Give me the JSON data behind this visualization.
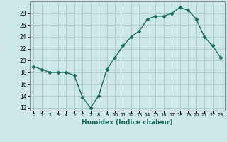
{
  "x": [
    0,
    1,
    2,
    3,
    4,
    5,
    6,
    7,
    8,
    9,
    10,
    11,
    12,
    13,
    14,
    15,
    16,
    17,
    18,
    19,
    20,
    21,
    22,
    23
  ],
  "y": [
    19,
    18.5,
    18,
    18,
    18,
    17.5,
    13.8,
    12,
    14,
    18.5,
    20.5,
    22.5,
    24,
    25,
    27,
    27.5,
    27.5,
    28,
    29,
    28.5,
    27,
    24,
    22.5,
    20.5
  ],
  "line_color": "#1a6b5a",
  "marker": "D",
  "markersize": 2.5,
  "bg_color": "#cce8e8",
  "grid_color": "#b0cccc",
  "xlabel": "Humidex (Indice chaleur)",
  "ylabel_ticks": [
    12,
    14,
    16,
    18,
    20,
    22,
    24,
    26,
    28
  ],
  "xtick_labels": [
    "0",
    "1",
    "2",
    "3",
    "4",
    "5",
    "6",
    "7",
    "8",
    "9",
    "10",
    "11",
    "12",
    "13",
    "14",
    "15",
    "16",
    "17",
    "18",
    "19",
    "20",
    "21",
    "22",
    "23"
  ],
  "ylim": [
    11.5,
    30
  ],
  "xlim": [
    -0.5,
    23.5
  ]
}
